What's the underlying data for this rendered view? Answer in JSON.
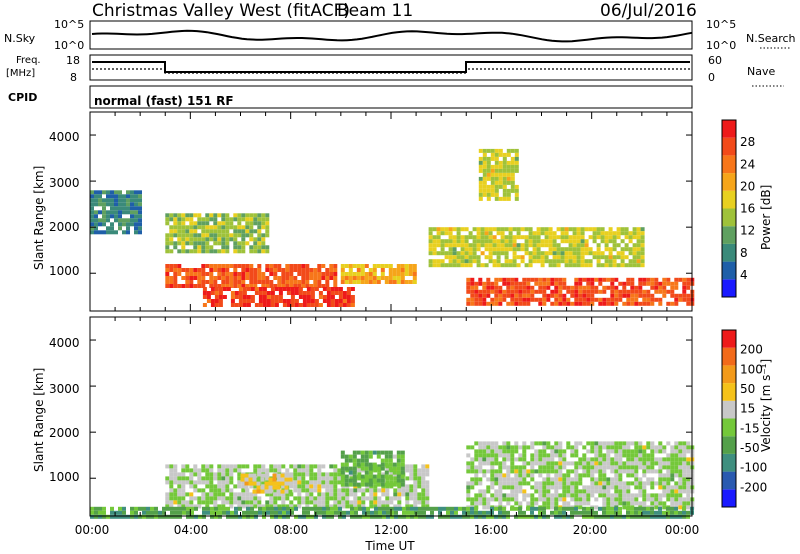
{
  "header": {
    "station": "Christmas Valley West (fitACF)",
    "beam": "Beam 11",
    "date": "06/Jul/2016"
  },
  "summary": {
    "nsky_label": "N.Sky",
    "nsearch_label": "N.Search",
    "freq_label_1": "Freq.",
    "freq_label_2": "[MHz]",
    "nave_label": "Nave",
    "cpid_label": "CPID",
    "cpid_text": "normal (fast) 151 RF",
    "nsky_ticks": [
      "10^5",
      "10^0"
    ],
    "nsearch_ticks": [
      "10^5",
      "10^0"
    ],
    "freq_ticks": [
      "18",
      "8"
    ],
    "nave_ticks": [
      "60",
      "0"
    ]
  },
  "axes": {
    "time_ticks": [
      "00:00",
      "04:00",
      "08:00",
      "12:00",
      "16:00",
      "20:00",
      "00:00"
    ],
    "range_ticks": [
      "1000",
      "2000",
      "3000",
      "4000"
    ],
    "xlabel": "Time UT",
    "ylabel": "Slant Range [km]"
  },
  "colorbars": {
    "power": {
      "label": "Power [dB]",
      "ticks": [
        "4",
        "8",
        "12",
        "16",
        "20",
        "24",
        "28"
      ],
      "colors": [
        "#1a1aff",
        "#1f5fa8",
        "#3a8a7a",
        "#5fa060",
        "#9fc23a",
        "#e8d020",
        "#f6a51a",
        "#f7761a",
        "#f24a1a",
        "#ee1a1a"
      ]
    },
    "velocity": {
      "label": "Velocity [m s⁻¹]",
      "ticks": [
        "200",
        "100",
        "50",
        "15",
        "-15",
        "-50",
        "-100",
        "-200"
      ],
      "colors": [
        "#1a1aff",
        "#2a5ab0",
        "#3f8f7f",
        "#54a04a",
        "#74c83a",
        "#c8c8c8",
        "#f5c21a",
        "#f39a1a",
        "#f26a1a",
        "#ee1a1a"
      ]
    }
  },
  "chart_data": [
    {
      "type": "heatmap",
      "title": "Power",
      "xlabel": "Time UT",
      "ylabel": "Slant Range [km]",
      "xlim": [
        0,
        24
      ],
      "ylim": [
        180,
        4500
      ],
      "colorbar_label": "Power [dB]",
      "colorbar_range": [
        0,
        32
      ],
      "regions": [
        {
          "t0": 3.0,
          "t1": 9.8,
          "r0": 700,
          "r1": 1200,
          "value": 26
        },
        {
          "t0": 4.5,
          "t1": 10.5,
          "r0": 300,
          "r1": 700,
          "value": 28
        },
        {
          "t0": 10.0,
          "t1": 13.0,
          "r0": 800,
          "r1": 1200,
          "value": 20
        },
        {
          "t0": 15.0,
          "t1": 24.0,
          "r0": 300,
          "r1": 900,
          "value": 27
        },
        {
          "t0": 13.5,
          "t1": 22.0,
          "r0": 1200,
          "r1": 2000,
          "value": 16
        },
        {
          "t0": 3.0,
          "t1": 7.0,
          "r0": 1500,
          "r1": 2300,
          "value": 14
        },
        {
          "t0": 0.0,
          "t1": 2.0,
          "r0": 1900,
          "r1": 2800,
          "value": 8
        },
        {
          "t0": 15.5,
          "t1": 17.0,
          "r0": 2600,
          "r1": 3700,
          "value": 16
        }
      ]
    },
    {
      "type": "heatmap",
      "title": "Velocity",
      "xlabel": "Time UT",
      "ylabel": "Slant Range [km]",
      "xlim": [
        0,
        24
      ],
      "ylim": [
        180,
        4500
      ],
      "colorbar_label": "Velocity [m s⁻¹]",
      "colorbar_range": [
        -200,
        200
      ],
      "regions": [
        {
          "t0": 3.0,
          "t1": 13.5,
          "r0": 400,
          "r1": 1300,
          "value": 0
        },
        {
          "t0": 6.0,
          "t1": 8.0,
          "r0": 700,
          "r1": 1100,
          "value": 40
        },
        {
          "t0": 10.0,
          "t1": 12.5,
          "r0": 900,
          "r1": 1600,
          "value": -40
        },
        {
          "t0": 15.0,
          "t1": 24.0,
          "r0": 400,
          "r1": 1800,
          "value": 0
        },
        {
          "t0": 0.0,
          "t1": 24.0,
          "r0": 180,
          "r1": 380,
          "value": -60
        }
      ]
    }
  ]
}
